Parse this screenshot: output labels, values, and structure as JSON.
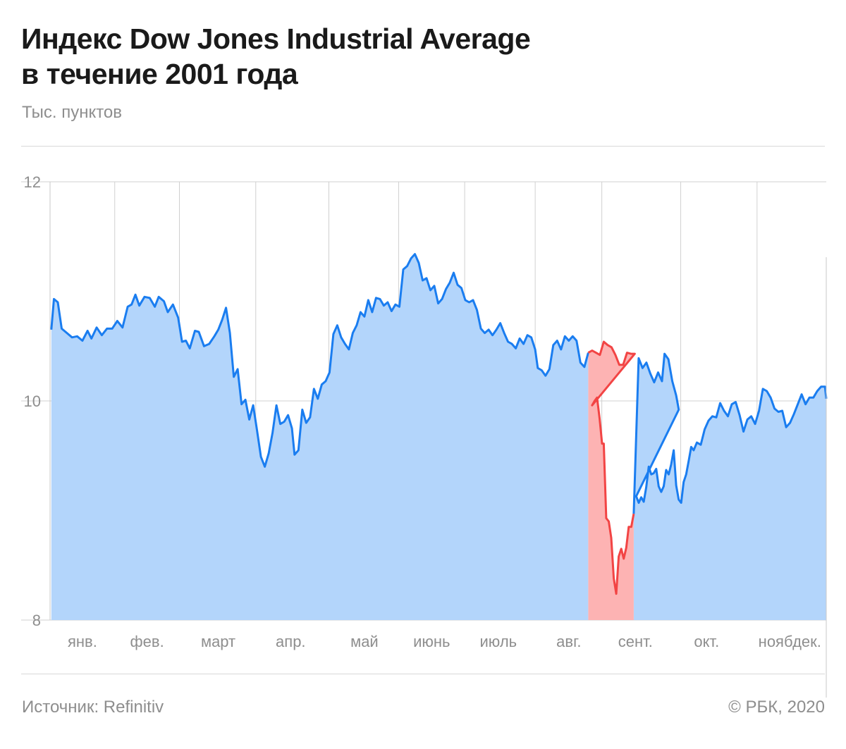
{
  "header": {
    "title": "Индекс Dow Jones Industrial Average\nв течение 2001 года",
    "subtitle": "Тыс. пунктов"
  },
  "footer": {
    "source": "Источник:  Refinitiv",
    "copyright": "©  РБК, 2020"
  },
  "colors": {
    "line": "#1a7df0",
    "fill": "#b3d5fb",
    "highlight_line": "#f24444",
    "highlight_fill": "#fdb3b3",
    "grid": "#d0d0d0"
  },
  "chart_data": {
    "type": "area",
    "ylabel": "Тыс. пунктов",
    "ylim": [
      8,
      12
    ],
    "yticks": [
      8,
      10,
      12
    ],
    "xlim": [
      0,
      12
    ],
    "month_labels": [
      "янв.",
      "фев.",
      "март",
      "апр.",
      "май",
      "июнь",
      "июль",
      "авг.",
      "сент.",
      "окт.",
      "нояб.",
      "дек."
    ],
    "highlight": {
      "from_month": 8.35,
      "to_month": 9.05
    },
    "series": [
      {
        "points": [
          [
            0.02,
            10.65
          ],
          [
            0.06,
            10.93
          ],
          [
            0.12,
            10.9
          ],
          [
            0.18,
            10.66
          ],
          [
            0.26,
            10.62
          ],
          [
            0.34,
            10.58
          ],
          [
            0.42,
            10.59
          ],
          [
            0.5,
            10.55
          ],
          [
            0.58,
            10.64
          ],
          [
            0.64,
            10.57
          ],
          [
            0.72,
            10.67
          ],
          [
            0.8,
            10.6
          ],
          [
            0.88,
            10.66
          ],
          [
            0.96,
            10.66
          ],
          [
            1.04,
            10.73
          ],
          [
            1.12,
            10.67
          ],
          [
            1.2,
            10.86
          ],
          [
            1.26,
            10.88
          ],
          [
            1.32,
            10.97
          ],
          [
            1.38,
            10.87
          ],
          [
            1.46,
            10.95
          ],
          [
            1.54,
            10.94
          ],
          [
            1.62,
            10.86
          ],
          [
            1.68,
            10.95
          ],
          [
            1.76,
            10.91
          ],
          [
            1.82,
            10.81
          ],
          [
            1.9,
            10.88
          ],
          [
            1.98,
            10.76
          ],
          [
            2.04,
            10.54
          ],
          [
            2.1,
            10.55
          ],
          [
            2.16,
            10.48
          ],
          [
            2.24,
            10.64
          ],
          [
            2.3,
            10.63
          ],
          [
            2.38,
            10.5
          ],
          [
            2.46,
            10.52
          ],
          [
            2.54,
            10.59
          ],
          [
            2.6,
            10.65
          ],
          [
            2.66,
            10.74
          ],
          [
            2.72,
            10.85
          ],
          [
            2.78,
            10.62
          ],
          [
            2.84,
            10.22
          ],
          [
            2.9,
            10.29
          ],
          [
            2.96,
            9.97
          ],
          [
            3.02,
            10.01
          ],
          [
            3.08,
            9.83
          ],
          [
            3.14,
            9.96
          ],
          [
            3.2,
            9.73
          ],
          [
            3.26,
            9.49
          ],
          [
            3.32,
            9.4
          ],
          [
            3.38,
            9.52
          ],
          [
            3.44,
            9.71
          ],
          [
            3.5,
            9.96
          ],
          [
            3.56,
            9.79
          ],
          [
            3.62,
            9.81
          ],
          [
            3.68,
            9.87
          ],
          [
            3.74,
            9.75
          ],
          [
            3.78,
            9.51
          ],
          [
            3.84,
            9.55
          ],
          [
            3.9,
            9.92
          ],
          [
            3.96,
            9.8
          ],
          [
            4.02,
            9.85
          ],
          [
            4.08,
            10.11
          ],
          [
            4.14,
            10.02
          ],
          [
            4.2,
            10.15
          ],
          [
            4.26,
            10.18
          ],
          [
            4.32,
            10.26
          ],
          [
            4.38,
            10.61
          ],
          [
            4.44,
            10.69
          ],
          [
            4.5,
            10.58
          ],
          [
            4.56,
            10.52
          ],
          [
            4.62,
            10.47
          ],
          [
            4.68,
            10.62
          ],
          [
            4.74,
            10.69
          ],
          [
            4.8,
            10.81
          ],
          [
            4.86,
            10.77
          ],
          [
            4.92,
            10.92
          ],
          [
            4.98,
            10.81
          ],
          [
            5.04,
            10.94
          ],
          [
            5.1,
            10.93
          ],
          [
            5.16,
            10.87
          ],
          [
            5.22,
            10.9
          ],
          [
            5.28,
            10.82
          ],
          [
            5.34,
            10.88
          ],
          [
            5.4,
            10.86
          ],
          [
            5.46,
            11.2
          ],
          [
            5.52,
            11.23
          ],
          [
            5.58,
            11.3
          ],
          [
            5.64,
            11.34
          ],
          [
            5.7,
            11.26
          ],
          [
            5.76,
            11.1
          ],
          [
            5.82,
            11.12
          ],
          [
            5.88,
            11.01
          ],
          [
            5.94,
            11.05
          ],
          [
            6.0,
            10.89
          ],
          [
            6.06,
            10.93
          ],
          [
            6.12,
            11.02
          ],
          [
            6.18,
            11.08
          ],
          [
            6.24,
            11.17
          ],
          [
            6.3,
            11.06
          ],
          [
            6.36,
            11.03
          ],
          [
            6.42,
            10.92
          ],
          [
            6.48,
            10.9
          ],
          [
            6.54,
            10.92
          ],
          [
            6.6,
            10.83
          ],
          [
            6.66,
            10.66
          ],
          [
            6.72,
            10.62
          ],
          [
            6.78,
            10.65
          ],
          [
            6.84,
            10.6
          ],
          [
            6.9,
            10.65
          ],
          [
            6.96,
            10.71
          ],
          [
            7.02,
            10.62
          ],
          [
            7.08,
            10.54
          ],
          [
            7.14,
            10.52
          ],
          [
            7.2,
            10.48
          ],
          [
            7.26,
            10.57
          ],
          [
            7.32,
            10.52
          ],
          [
            7.38,
            10.6
          ],
          [
            7.44,
            10.58
          ],
          [
            7.5,
            10.47
          ],
          [
            7.54,
            10.3
          ],
          [
            7.6,
            10.28
          ],
          [
            7.66,
            10.23
          ],
          [
            7.72,
            10.29
          ],
          [
            7.78,
            10.51
          ],
          [
            7.84,
            10.55
          ],
          [
            7.9,
            10.47
          ],
          [
            7.96,
            10.59
          ],
          [
            8.02,
            10.55
          ],
          [
            8.08,
            10.59
          ],
          [
            8.14,
            10.55
          ],
          [
            8.2,
            10.35
          ],
          [
            8.26,
            10.31
          ],
          [
            8.32,
            10.44
          ],
          [
            8.38,
            10.46
          ],
          [
            8.44,
            10.44
          ],
          [
            8.5,
            10.42
          ],
          [
            8.56,
            10.54
          ],
          [
            8.62,
            10.51
          ],
          [
            8.68,
            10.49
          ],
          [
            8.74,
            10.42
          ],
          [
            8.8,
            10.33
          ],
          [
            8.86,
            10.33
          ],
          [
            8.92,
            10.44
          ],
          [
            8.98,
            10.43
          ],
          [
            9.04,
            10.43
          ],
          [
            9.1,
            10.39
          ],
          [
            9.16,
            10.3
          ],
          [
            9.22,
            10.35
          ],
          [
            9.28,
            10.25
          ],
          [
            9.34,
            10.17
          ],
          [
            9.4,
            10.26
          ],
          [
            9.46,
            10.18
          ],
          [
            9.5,
            10.43
          ],
          [
            9.56,
            10.38
          ],
          [
            9.62,
            10.18
          ],
          [
            9.68,
            10.05
          ],
          [
            9.72,
            9.92
          ]
        ]
      }
    ]
  }
}
